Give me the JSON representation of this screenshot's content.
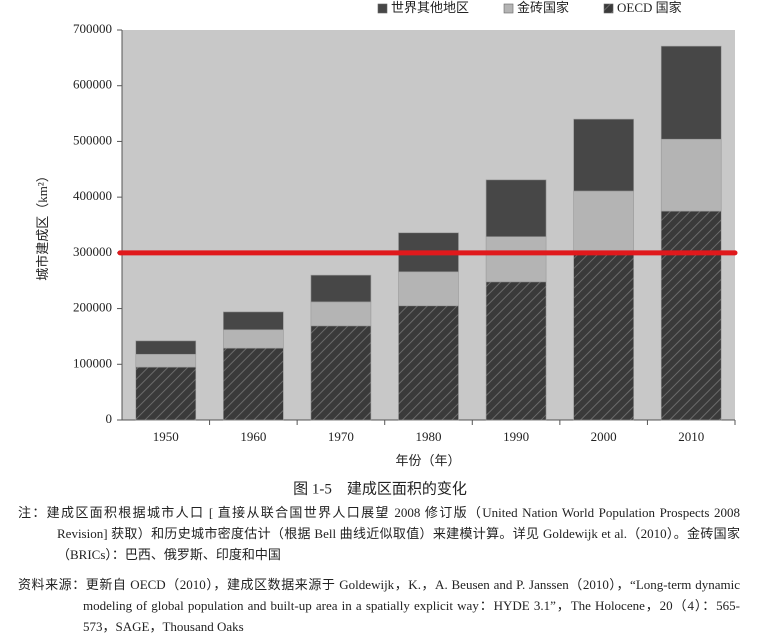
{
  "chart_data": {
    "type": "stacked-bar",
    "title": "图 1-5　建成区面积的变化",
    "x_label": "年份（年）",
    "y_label": "城市建成区（km²）",
    "categories": [
      "1950",
      "1960",
      "1970",
      "1980",
      "1990",
      "2000",
      "2010"
    ],
    "series": [
      {
        "name": "OECD 国家",
        "color": "#3a3a3a",
        "pattern": "hatch",
        "values": [
          95000,
          129000,
          169000,
          205000,
          248000,
          297000,
          375000
        ]
      },
      {
        "name": "金砖国家",
        "color": "#b4b4b4",
        "values": [
          23000,
          33000,
          43000,
          61000,
          81000,
          114000,
          129000
        ]
      },
      {
        "name": "世界其他地区",
        "color": "#474747",
        "values": [
          24000,
          32000,
          48000,
          70000,
          102000,
          129000,
          167000
        ]
      }
    ],
    "ylim": [
      0,
      700000
    ],
    "yticks": [
      0,
      100000,
      200000,
      300000,
      400000,
      500000,
      600000,
      700000
    ],
    "reference_line": {
      "value": 300000,
      "color": "#e0191c"
    },
    "note": "注：建成区面积根据城市人口 [ 直接从联合国世界人口展望 2008 修订版（United Nation World Population Prospects 2008 Revision] 获取）和历史城市密度估计（根据 Bell 曲线近似取值）来建模计算。详见 Goldewijk et al.（2010）。金砖国家（BRICs）：巴西、俄罗斯、印度和中国",
    "source": "资料来源：更新自 OECD（2010），建成区数据来源于 Goldewijk，K.，A. Beusen and P. Janssen（2010），“Long-term dynamic modeling of global population and built-up area in a spatially explicit way：HYDE 3.1”，The Holocene，20（4）：565-573，SAGE，Thousand Oaks"
  }
}
